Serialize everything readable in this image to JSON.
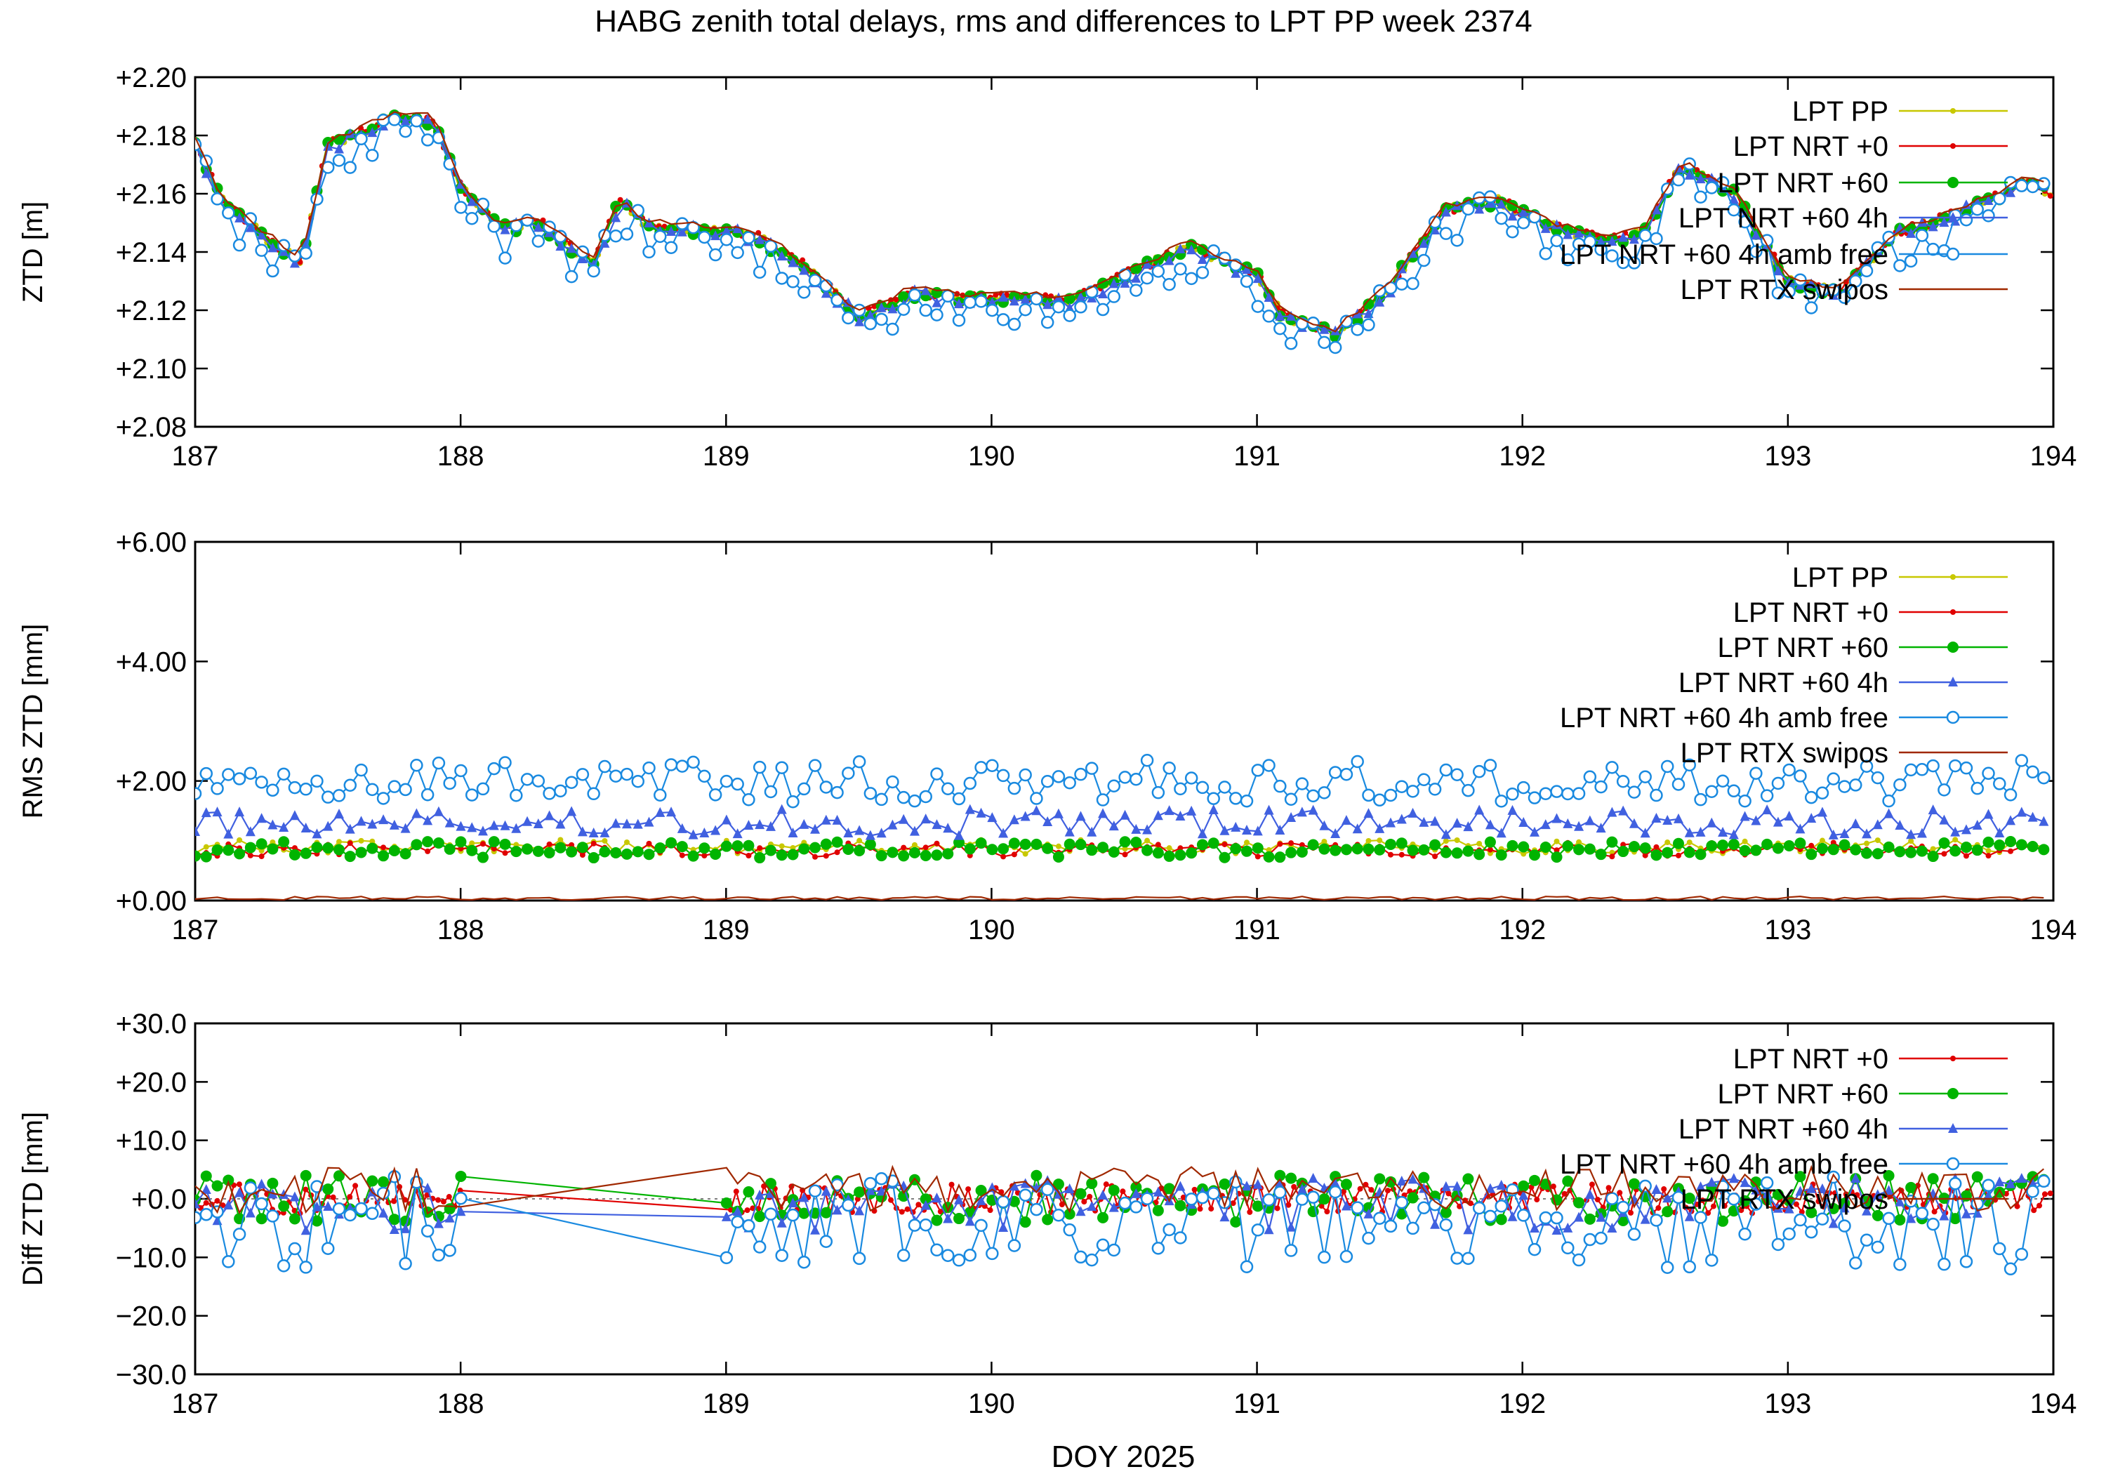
{
  "figure": {
    "title": "HABG zenith total delays, rms and differences to LPT PP week 2374",
    "xlabel": "DOY 2025"
  },
  "colors": {
    "lpt_pp": "#c8c800",
    "nrt0": "#e00000",
    "nrt60": "#00b400",
    "nrt60_4h": "#4060e0",
    "amb_free": "#1a8ae0",
    "rtx": "#a02800"
  },
  "chart_data": [
    {
      "type": "line",
      "name": "ztd",
      "ylabel": "ZTD [m]",
      "xlim": [
        187,
        194
      ],
      "ylim": [
        2.08,
        2.2
      ],
      "y_ticks": [
        2.08,
        2.1,
        2.12,
        2.14,
        2.16,
        2.18,
        2.2
      ],
      "y_tick_labels": [
        "+2.08",
        "+2.10",
        "+2.12",
        "+2.14",
        "+2.16",
        "+2.18",
        "+2.20"
      ],
      "x_ticks": [
        187,
        188,
        189,
        190,
        191,
        192,
        193,
        194
      ],
      "x_tick_labels": [
        "187",
        "188",
        "189",
        "190",
        "191",
        "192",
        "193",
        "194"
      ],
      "keyframes": {
        "x": [
          187.0,
          187.1,
          187.25,
          187.4,
          187.5,
          187.6,
          187.75,
          187.9,
          188.0,
          188.15,
          188.3,
          188.5,
          188.6,
          188.7,
          188.9,
          189.1,
          189.3,
          189.5,
          189.7,
          189.9,
          190.1,
          190.3,
          190.5,
          190.75,
          191.0,
          191.1,
          191.3,
          191.5,
          191.7,
          191.9,
          192.1,
          192.3,
          192.45,
          192.6,
          192.8,
          193.0,
          193.2,
          193.4,
          193.6,
          193.8,
          193.9,
          194.0
        ],
        "y": [
          2.177,
          2.158,
          2.146,
          2.136,
          2.177,
          2.18,
          2.186,
          2.185,
          2.162,
          2.148,
          2.15,
          2.136,
          2.158,
          2.149,
          2.148,
          2.146,
          2.135,
          2.118,
          2.126,
          2.124,
          2.124,
          2.123,
          2.132,
          2.142,
          2.132,
          2.118,
          2.112,
          2.128,
          2.154,
          2.158,
          2.149,
          2.144,
          2.146,
          2.17,
          2.16,
          2.13,
          2.126,
          2.146,
          2.152,
          2.16,
          2.164,
          2.16
        ]
      },
      "series": [
        {
          "name": "LPT PP",
          "color": "#c8c800",
          "marker": "dot",
          "step": 0.0208,
          "offset": 0.0,
          "noise": 0.0015,
          "legend": "LPT PP"
        },
        {
          "name": "LPT NRT +0",
          "color": "#e00000",
          "marker": "dot",
          "step": 0.0208,
          "offset": 0.0003,
          "noise": 0.0015,
          "legend": "LPT NRT +0"
        },
        {
          "name": "LPT NRT +60",
          "color": "#00b400",
          "marker": "bigdot",
          "step": 0.0417,
          "offset": -0.0003,
          "noise": 0.0018,
          "legend": "LPT NRT +60"
        },
        {
          "name": "LPT NRT +60 4h",
          "color": "#4060e0",
          "marker": "triangle",
          "step": 0.0417,
          "offset": -0.0008,
          "noise": 0.0022,
          "legend": "LPT NRT +60 4h"
        },
        {
          "name": "LPT NRT +60 4h amb free",
          "color": "#1a8ae0",
          "marker": "circle",
          "step": 0.0417,
          "offset": -0.0045,
          "noise": 0.007,
          "legend": "LPT NRT +60 4h amb free"
        },
        {
          "name": "LPT RTX swipos",
          "color": "#a02800",
          "marker": "none",
          "step": 0.0417,
          "offset": 0.0015,
          "noise": 0.0012,
          "legend": "LPT RTX swipos"
        }
      ]
    },
    {
      "type": "line",
      "name": "rms",
      "ylabel": "RMS ZTD [mm]",
      "xlim": [
        187,
        194
      ],
      "ylim": [
        0,
        6
      ],
      "y_ticks": [
        0,
        2,
        4,
        6
      ],
      "y_tick_labels": [
        "+0.00",
        "+2.00",
        "+4.00",
        "+6.00"
      ],
      "x_ticks": [
        187,
        188,
        189,
        190,
        191,
        192,
        193,
        194
      ],
      "x_tick_labels": [
        "187",
        "188",
        "189",
        "190",
        "191",
        "192",
        "193",
        "194"
      ],
      "series": [
        {
          "name": "LPT PP",
          "color": "#c8c800",
          "marker": "dot",
          "step": 0.0417,
          "base": 0.9,
          "noise": 0.12,
          "legend": "LPT PP"
        },
        {
          "name": "LPT NRT +0",
          "color": "#e00000",
          "marker": "dot",
          "step": 0.0417,
          "base": 0.85,
          "noise": 0.12,
          "legend": "LPT NRT +0"
        },
        {
          "name": "LPT NRT +60",
          "color": "#00b400",
          "marker": "bigdot",
          "step": 0.0417,
          "base": 0.85,
          "noise": 0.14,
          "legend": "LPT NRT +60"
        },
        {
          "name": "LPT NRT +60 4h",
          "color": "#4060e0",
          "marker": "triangle",
          "step": 0.0417,
          "base": 1.3,
          "noise": 0.22,
          "legend": "LPT NRT +60 4h"
        },
        {
          "name": "LPT NRT +60 4h amb free",
          "color": "#1a8ae0",
          "marker": "circle",
          "step": 0.0417,
          "base": 2.0,
          "noise": 0.35,
          "legend": "LPT NRT +60 4h amb free"
        },
        {
          "name": "LPT RTX swipos",
          "color": "#a02800",
          "marker": "none",
          "step": 0.0417,
          "base": 0.04,
          "noise": 0.03,
          "legend": "LPT RTX swipos"
        }
      ]
    },
    {
      "type": "line",
      "name": "diff",
      "ylabel": "Diff ZTD [mm]",
      "xlim": [
        187,
        194
      ],
      "ylim": [
        -30,
        30
      ],
      "y_ticks": [
        -30,
        -20,
        -10,
        0,
        10,
        20,
        30
      ],
      "y_tick_labels": [
        "−30.0",
        "−20.0",
        "−10.0",
        "+0.0",
        "+10.0",
        "+20.0",
        "+30.0"
      ],
      "x_ticks": [
        187,
        188,
        189,
        190,
        191,
        192,
        193,
        194
      ],
      "x_tick_labels": [
        "187",
        "188",
        "189",
        "190",
        "191",
        "192",
        "193",
        "194"
      ],
      "zero_line": true,
      "gap": [
        188.0,
        189.0
      ],
      "series": [
        {
          "name": "LPT NRT +0",
          "color": "#e00000",
          "marker": "dot",
          "step": 0.0208,
          "base": 0.0,
          "noise": 2.5,
          "legend": "LPT NRT +0"
        },
        {
          "name": "LPT NRT +60",
          "color": "#00b400",
          "marker": "bigdot",
          "step": 0.0417,
          "base": 0.0,
          "noise": 4.0,
          "legend": "LPT NRT +60"
        },
        {
          "name": "LPT NRT +60 4h",
          "color": "#4060e0",
          "marker": "triangle",
          "step": 0.0417,
          "base": -1.0,
          "noise": 4.5,
          "legend": "LPT NRT +60 4h"
        },
        {
          "name": "LPT NRT +60 4h amb free",
          "color": "#1a8ae0",
          "marker": "circle",
          "step": 0.0417,
          "base": -4.0,
          "noise": 8.0,
          "legend": "LPT NRT +60 4h amb free"
        },
        {
          "name": "LPT RTX swipos",
          "color": "#a02800",
          "marker": "none",
          "step": 0.0417,
          "base": 1.5,
          "noise": 4.0,
          "legend": "LPT RTX swipos"
        }
      ]
    }
  ]
}
